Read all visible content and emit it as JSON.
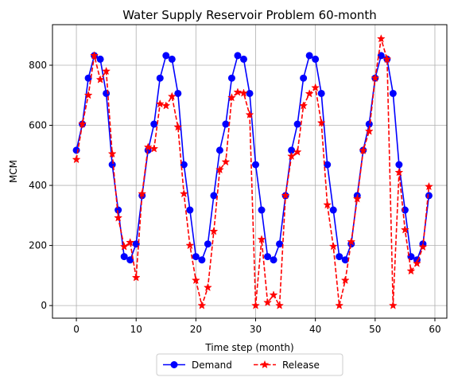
{
  "chart_data": {
    "type": "line",
    "title": "Water Supply Reservoir Problem 60-month",
    "xlabel": "Time step (month)",
    "ylabel": "MCM",
    "xlim": [
      -4,
      62
    ],
    "ylim": [
      -42,
      935
    ],
    "xticks": [
      0,
      10,
      20,
      30,
      40,
      50,
      60
    ],
    "yticks": [
      0,
      200,
      400,
      600,
      800
    ],
    "grid": true,
    "legend": {
      "placement": "below-center",
      "ncol": 2
    },
    "series": [
      {
        "name": "Demand",
        "color": "#0000ff",
        "line_style": "solid",
        "marker": "circle",
        "x": [
          0,
          1,
          2,
          3,
          4,
          5,
          6,
          7,
          8,
          9,
          10,
          11,
          12,
          13,
          14,
          15,
          16,
          17,
          18,
          19,
          20,
          21,
          22,
          23,
          24,
          25,
          26,
          27,
          28,
          29,
          30,
          31,
          32,
          33,
          34,
          35,
          36,
          37,
          38,
          39,
          40,
          41,
          42,
          43,
          44,
          45,
          46,
          47,
          48,
          49,
          50,
          51,
          52,
          53,
          54,
          55,
          56,
          57,
          58,
          59
        ],
        "values": [
          517,
          604,
          757,
          832,
          820,
          706,
          469,
          318,
          163,
          152,
          205,
          366,
          517,
          604,
          757,
          832,
          820,
          706,
          469,
          318,
          163,
          152,
          205,
          366,
          517,
          604,
          757,
          832,
          820,
          706,
          469,
          318,
          163,
          152,
          205,
          366,
          517,
          604,
          757,
          832,
          820,
          706,
          469,
          318,
          163,
          152,
          205,
          366,
          517,
          604,
          757,
          832,
          820,
          706,
          469,
          318,
          163,
          152,
          205,
          366
        ]
      },
      {
        "name": "Release",
        "color": "#ff0000",
        "line_style": "dashed",
        "marker": "star",
        "x": [
          0,
          1,
          2,
          3,
          4,
          5,
          6,
          7,
          8,
          9,
          10,
          11,
          12,
          13,
          14,
          15,
          16,
          17,
          18,
          19,
          20,
          21,
          22,
          23,
          24,
          25,
          26,
          27,
          28,
          29,
          30,
          31,
          32,
          33,
          34,
          35,
          36,
          37,
          38,
          39,
          40,
          41,
          42,
          43,
          44,
          45,
          46,
          47,
          48,
          49,
          50,
          51,
          52,
          53,
          54,
          55,
          56,
          57,
          58,
          59
        ],
        "values": [
          486,
          604,
          700,
          832,
          752,
          780,
          505,
          292,
          196,
          210,
          93,
          372,
          527,
          522,
          671,
          665,
          696,
          594,
          372,
          200,
          84,
          0,
          60,
          247,
          452,
          478,
          692,
          710,
          707,
          635,
          0,
          220,
          10,
          35,
          0,
          366,
          497,
          511,
          665,
          705,
          725,
          608,
          335,
          197,
          0,
          84,
          212,
          355,
          516,
          580,
          757,
          888,
          820,
          0,
          443,
          252,
          115,
          140,
          195,
          396
        ]
      }
    ]
  }
}
